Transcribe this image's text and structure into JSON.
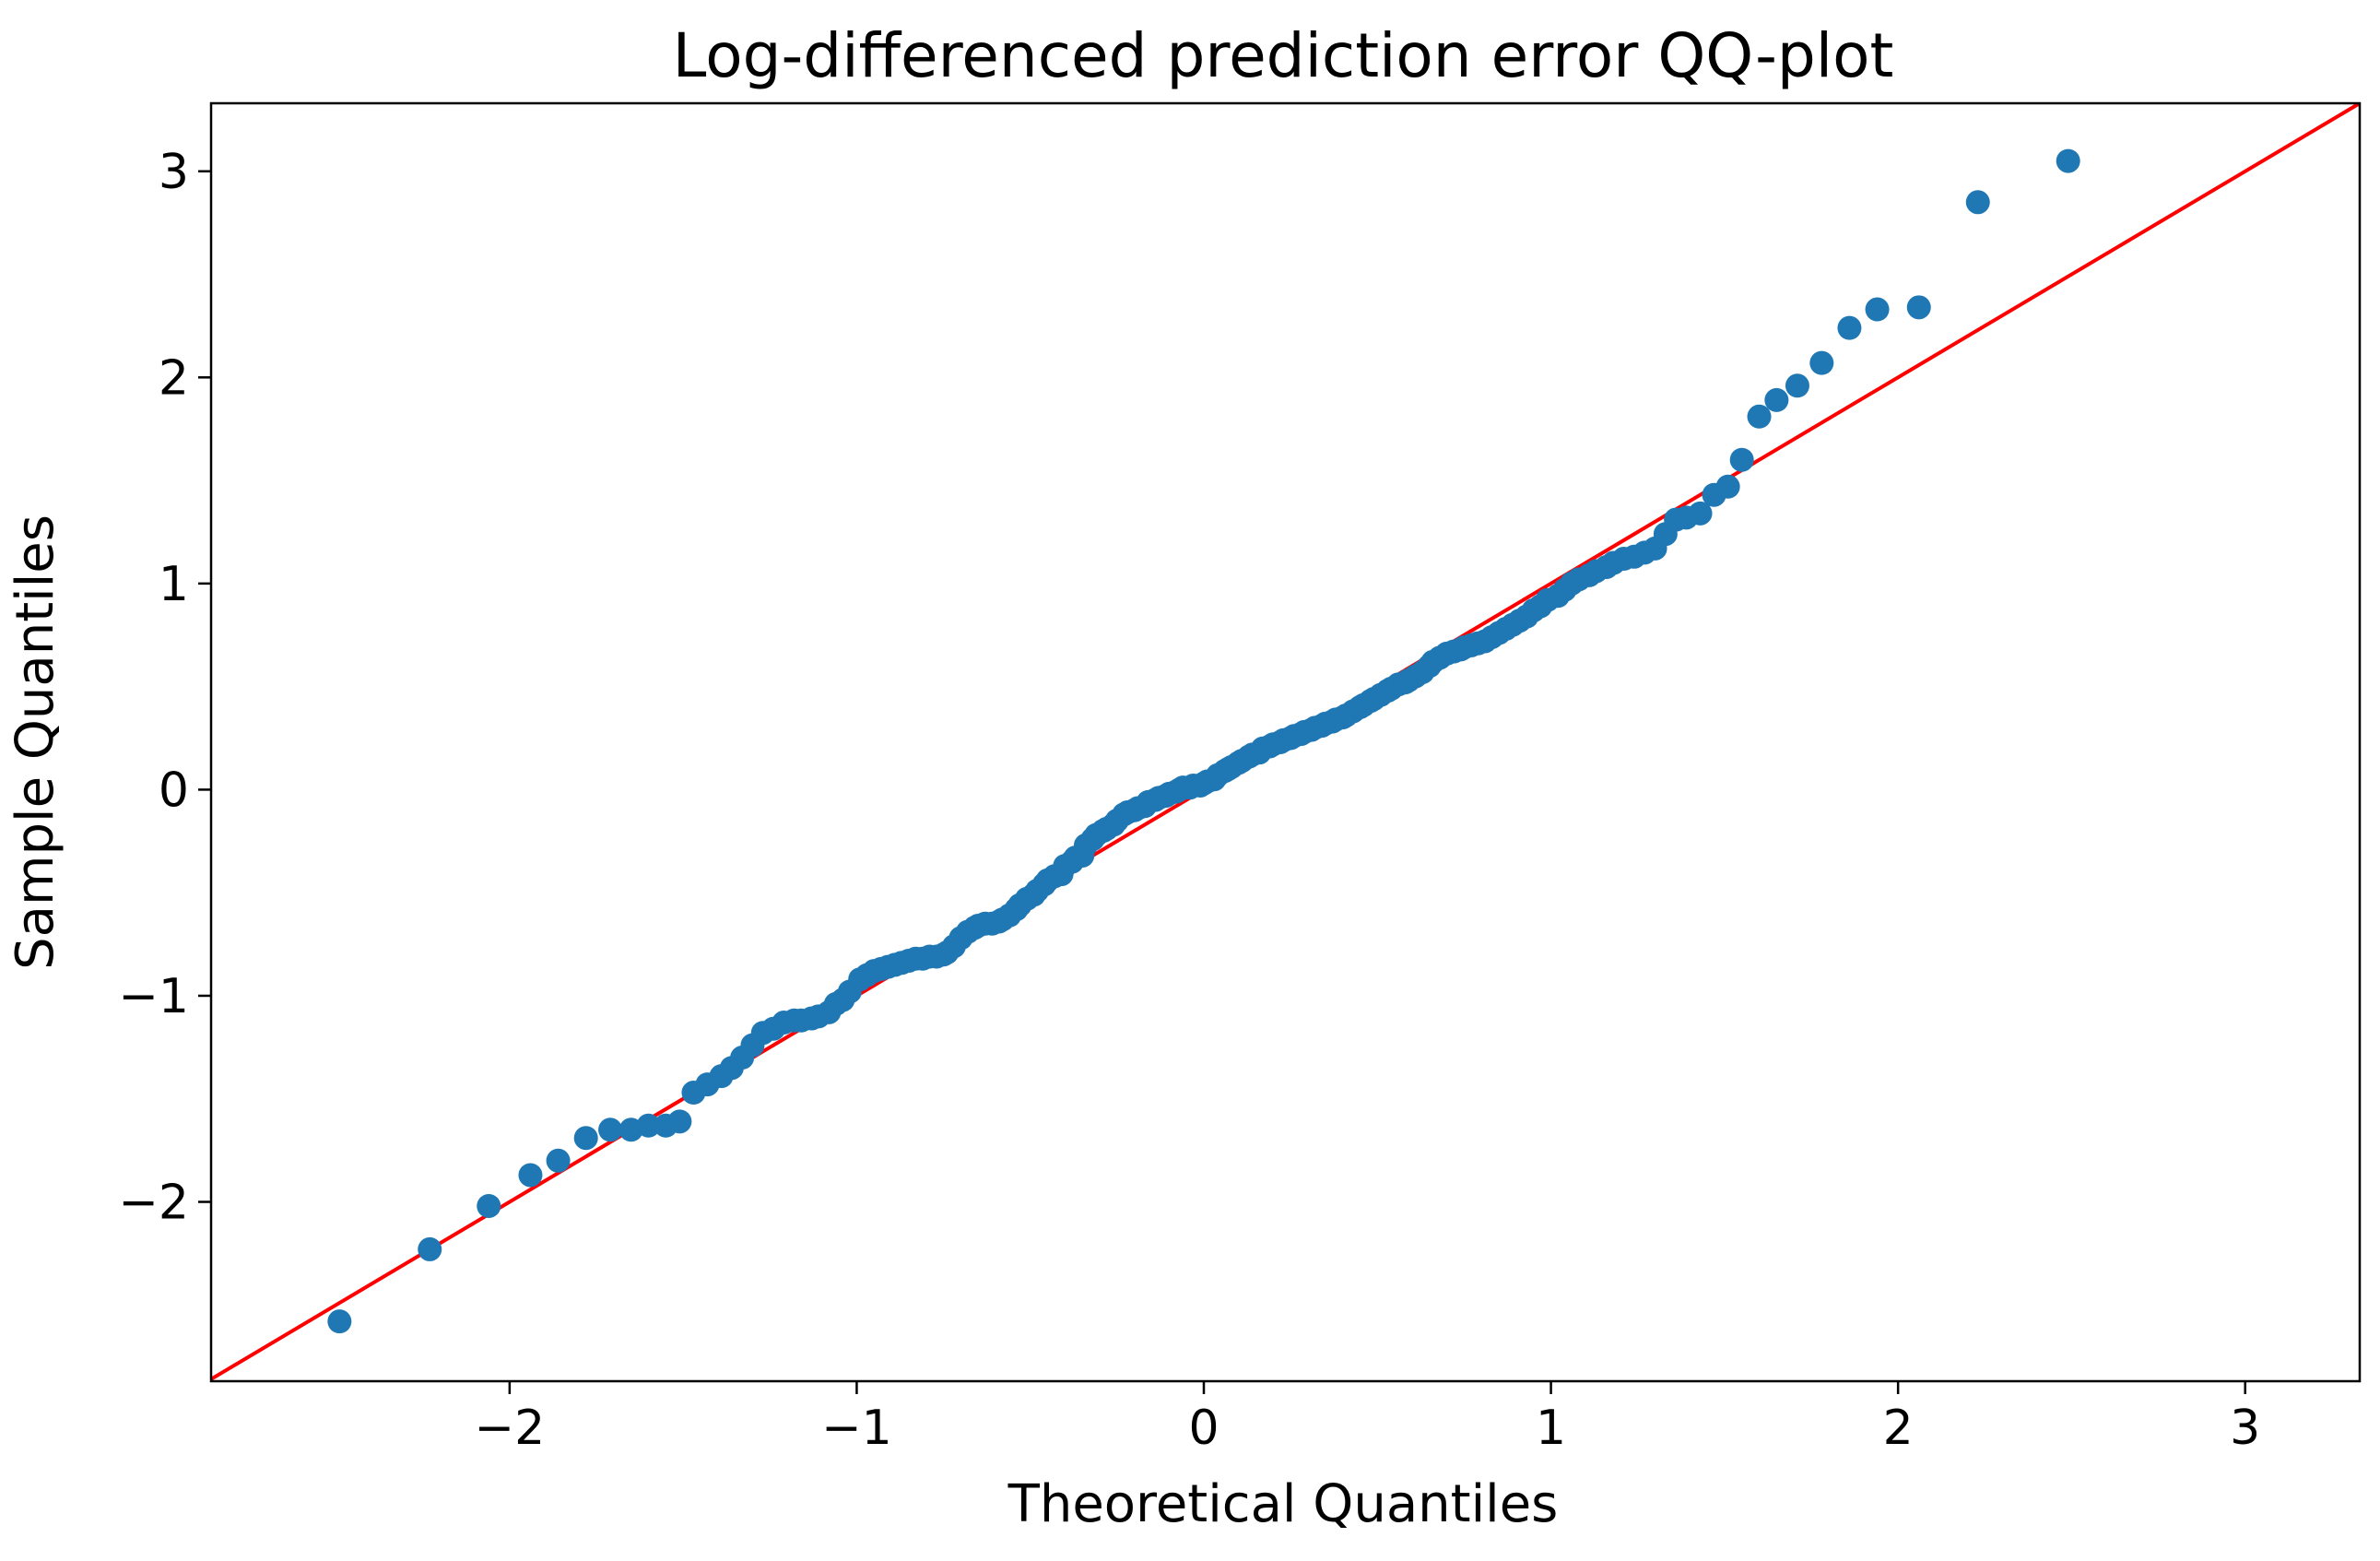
{
  "chart_data": {
    "type": "scatter",
    "title": "Log-differenced prediction error QQ-plot",
    "xlabel": "Theoretical Quantiles",
    "ylabel": "Sample Quantiles",
    "xlim": [
      -2.86,
      3.33
    ],
    "ylim": [
      -2.87,
      3.33
    ],
    "x_ticks": [
      -2,
      -1,
      0,
      1,
      2,
      3
    ],
    "y_ticks": [
      -2,
      -1,
      0,
      1,
      2,
      3
    ],
    "x_tick_labels": [
      "−2",
      "−1",
      "0",
      "1",
      "2",
      "3"
    ],
    "y_tick_labels": [
      "−2",
      "−1",
      "0",
      "1",
      "2",
      "3"
    ],
    "grid": false,
    "legend": "none",
    "point_color": "#1f77b4",
    "line_color": "#ff0000",
    "reference_line": {
      "type": "45-degree",
      "slope": 1,
      "intercept": 0
    },
    "points": {
      "x": [
        -2.49,
        -2.23,
        -2.06,
        -1.94,
        -1.86,
        -1.78,
        -1.71,
        -1.65,
        -1.6,
        -1.55,
        -1.51,
        -1.47,
        -1.43,
        -1.39,
        -1.36,
        -1.33,
        -1.3,
        -1.27,
        -1.24,
        -1.21,
        -1.18,
        -1.16,
        -1.13,
        -1.11,
        -1.08,
        -1.06,
        -1.04,
        -1.02,
        -0.99,
        -0.97,
        -0.95,
        -0.93,
        -0.91,
        -0.89,
        -0.87,
        -0.85,
        -0.83,
        -0.81,
        -0.79,
        -0.77,
        -0.75,
        -0.74,
        -0.72,
        -0.7,
        -0.68,
        -0.66,
        -0.65,
        -0.63,
        -0.61,
        -0.59,
        -0.58,
        -0.56,
        -0.54,
        -0.53,
        -0.51,
        -0.49,
        -0.48,
        -0.46,
        -0.45,
        -0.43,
        -0.41,
        -0.4,
        -0.38,
        -0.37,
        -0.35,
        -0.34,
        -0.32,
        -0.31,
        -0.29,
        -0.28,
        -0.26,
        -0.25,
        -0.23,
        -0.22,
        -0.2,
        -0.19,
        -0.17,
        -0.16,
        -0.14,
        -0.13,
        -0.11,
        -0.1,
        -0.08,
        -0.07,
        -0.06,
        -0.04,
        -0.03,
        -0.01,
        0.0,
        0.01,
        0.03,
        0.04,
        0.06,
        0.07,
        0.08,
        0.1,
        0.11,
        0.13,
        0.14,
        0.16,
        0.17,
        0.19,
        0.2,
        0.22,
        0.23,
        0.25,
        0.26,
        0.28,
        0.29,
        0.31,
        0.32,
        0.34,
        0.35,
        0.37,
        0.38,
        0.4,
        0.41,
        0.43,
        0.45,
        0.46,
        0.48,
        0.49,
        0.51,
        0.53,
        0.54,
        0.56,
        0.58,
        0.59,
        0.61,
        0.63,
        0.65,
        0.66,
        0.68,
        0.7,
        0.72,
        0.74,
        0.75,
        0.77,
        0.79,
        0.81,
        0.83,
        0.85,
        0.87,
        0.89,
        0.91,
        0.93,
        0.95,
        0.97,
        0.99,
        1.02,
        1.04,
        1.06,
        1.08,
        1.11,
        1.13,
        1.16,
        1.18,
        1.21,
        1.24,
        1.27,
        1.3,
        1.33,
        1.36,
        1.39,
        1.43,
        1.47,
        1.51,
        1.55,
        1.6,
        1.65,
        1.71,
        1.78,
        1.86,
        1.94,
        2.06,
        2.23,
        2.49
      ],
      "y": [
        -2.58,
        -2.23,
        -2.02,
        -1.87,
        -1.8,
        -1.69,
        -1.65,
        -1.65,
        -1.63,
        -1.63,
        -1.61,
        -1.47,
        -1.43,
        -1.39,
        -1.35,
        -1.3,
        -1.24,
        -1.18,
        -1.16,
        -1.13,
        -1.12,
        -1.12,
        -1.11,
        -1.1,
        -1.08,
        -1.04,
        -1.02,
        -0.98,
        -0.92,
        -0.9,
        -0.88,
        -0.87,
        -0.86,
        -0.85,
        -0.84,
        -0.83,
        -0.82,
        -0.82,
        -0.81,
        -0.81,
        -0.8,
        -0.79,
        -0.76,
        -0.72,
        -0.69,
        -0.67,
        -0.66,
        -0.65,
        -0.65,
        -0.64,
        -0.63,
        -0.61,
        -0.58,
        -0.56,
        -0.53,
        -0.51,
        -0.49,
        -0.46,
        -0.44,
        -0.42,
        -0.41,
        -0.37,
        -0.35,
        -0.33,
        -0.32,
        -0.27,
        -0.24,
        -0.22,
        -0.2,
        -0.19,
        -0.17,
        -0.15,
        -0.12,
        -0.11,
        -0.1,
        -0.09,
        -0.08,
        -0.06,
        -0.05,
        -0.04,
        -0.03,
        -0.02,
        -0.01,
        0.0,
        0.01,
        0.01,
        0.02,
        0.02,
        0.03,
        0.04,
        0.05,
        0.07,
        0.09,
        0.1,
        0.11,
        0.13,
        0.14,
        0.16,
        0.17,
        0.18,
        0.2,
        0.21,
        0.22,
        0.23,
        0.24,
        0.25,
        0.26,
        0.27,
        0.28,
        0.29,
        0.3,
        0.31,
        0.32,
        0.33,
        0.34,
        0.35,
        0.36,
        0.38,
        0.4,
        0.41,
        0.43,
        0.44,
        0.46,
        0.48,
        0.49,
        0.51,
        0.52,
        0.53,
        0.55,
        0.57,
        0.6,
        0.62,
        0.64,
        0.66,
        0.67,
        0.68,
        0.69,
        0.7,
        0.71,
        0.72,
        0.74,
        0.76,
        0.78,
        0.8,
        0.82,
        0.84,
        0.87,
        0.89,
        0.92,
        0.94,
        0.97,
        1.0,
        1.02,
        1.04,
        1.06,
        1.08,
        1.1,
        1.12,
        1.13,
        1.15,
        1.17,
        1.24,
        1.31,
        1.32,
        1.34,
        1.43,
        1.47,
        1.6,
        1.81,
        1.89,
        1.96,
        2.07,
        2.24,
        2.33,
        2.34,
        2.85,
        3.05
      ]
    }
  }
}
